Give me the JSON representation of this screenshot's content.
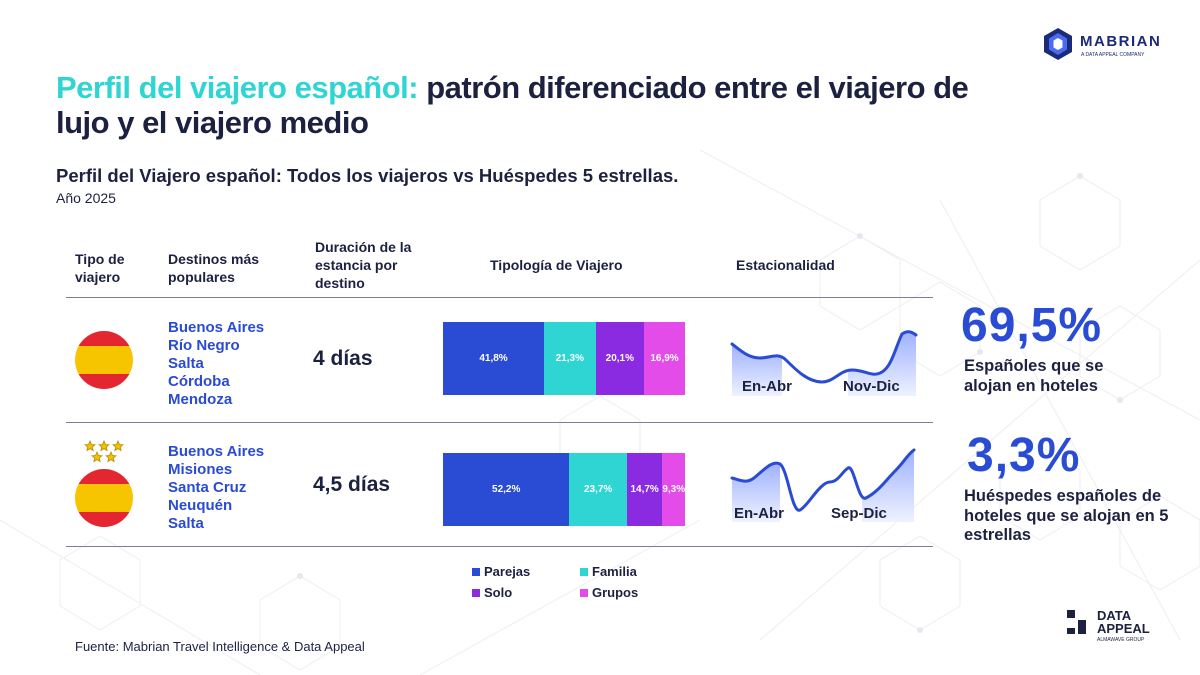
{
  "branding": {
    "mabrian_name": "MABRIAN",
    "mabrian_tagline": "A DATA APPEAL COMPANY",
    "dataappeal_line1": "DATA",
    "dataappeal_line2": "APPEAL",
    "dataappeal_tagline": "ALMAWAVE GROUP"
  },
  "header": {
    "title_highlight": "Perfil del viajero español:",
    "title_rest": " patrón diferenciado entre el viajero de lujo y el viajero medio",
    "subtitle": "Perfil del Viajero español: Todos los viajeros vs Huéspedes 5 estrellas.",
    "year": "Año 2025"
  },
  "columns": {
    "tipo": "Tipo de viajero",
    "destinos": "Destinos más populares",
    "duracion": "Duración de la estancia por destino",
    "tipologia": "Tipología de Viajero",
    "estacionalidad": "Estacionalidad"
  },
  "rows": [
    {
      "destinations": [
        "Buenos Aires",
        "Río Negro",
        "Salta",
        "Córdoba",
        "Mendoza"
      ],
      "duration": "4 días",
      "season_labels": [
        "En-Abr",
        "Nov-Dic"
      ]
    },
    {
      "destinations": [
        "Buenos Aires",
        "Misiones",
        "Santa Cruz",
        "Neuquén",
        "Salta"
      ],
      "duration": "4,5 días",
      "season_labels": [
        "En-Abr",
        "Sep-Dic"
      ]
    }
  ],
  "chart_data": {
    "type": "bar",
    "orientation": "horizontal",
    "stacked": true,
    "title": "Tipología de Viajero",
    "categories": [
      "Todos los viajeros",
      "Huéspedes 5 estrellas"
    ],
    "series": [
      {
        "name": "Parejas",
        "color": "#2a4bd3",
        "values": [
          41.8,
          52.2
        ],
        "labels": [
          "41,8%",
          "52,2%"
        ]
      },
      {
        "name": "Familia",
        "color": "#2fd5d3",
        "values": [
          21.3,
          23.7
        ],
        "labels": [
          "21,3%",
          "23,7%"
        ]
      },
      {
        "name": "Solo",
        "color": "#8a2be2",
        "values": [
          20.1,
          14.7
        ],
        "labels": [
          "20,1%",
          "14,7%"
        ]
      },
      {
        "name": "Grupos",
        "color": "#e34ce8",
        "values": [
          16.9,
          9.3
        ],
        "labels": [
          "16,9%",
          "9,3%"
        ]
      }
    ],
    "xlim": [
      0,
      100
    ],
    "legend_position": "bottom"
  },
  "kpis": [
    {
      "value": "69,5%",
      "label": "Españoles que se alojan en hoteles"
    },
    {
      "value": "3,3%",
      "label": "Huéspedes españoles de hoteles que se alojan en 5 estrellas"
    }
  ],
  "source": "Fuente: Mabrian Travel Intelligence & Data Appeal",
  "colors": {
    "navy": "#1c2140",
    "blue": "#2a4bd3",
    "cyan": "#2fd5d3"
  }
}
